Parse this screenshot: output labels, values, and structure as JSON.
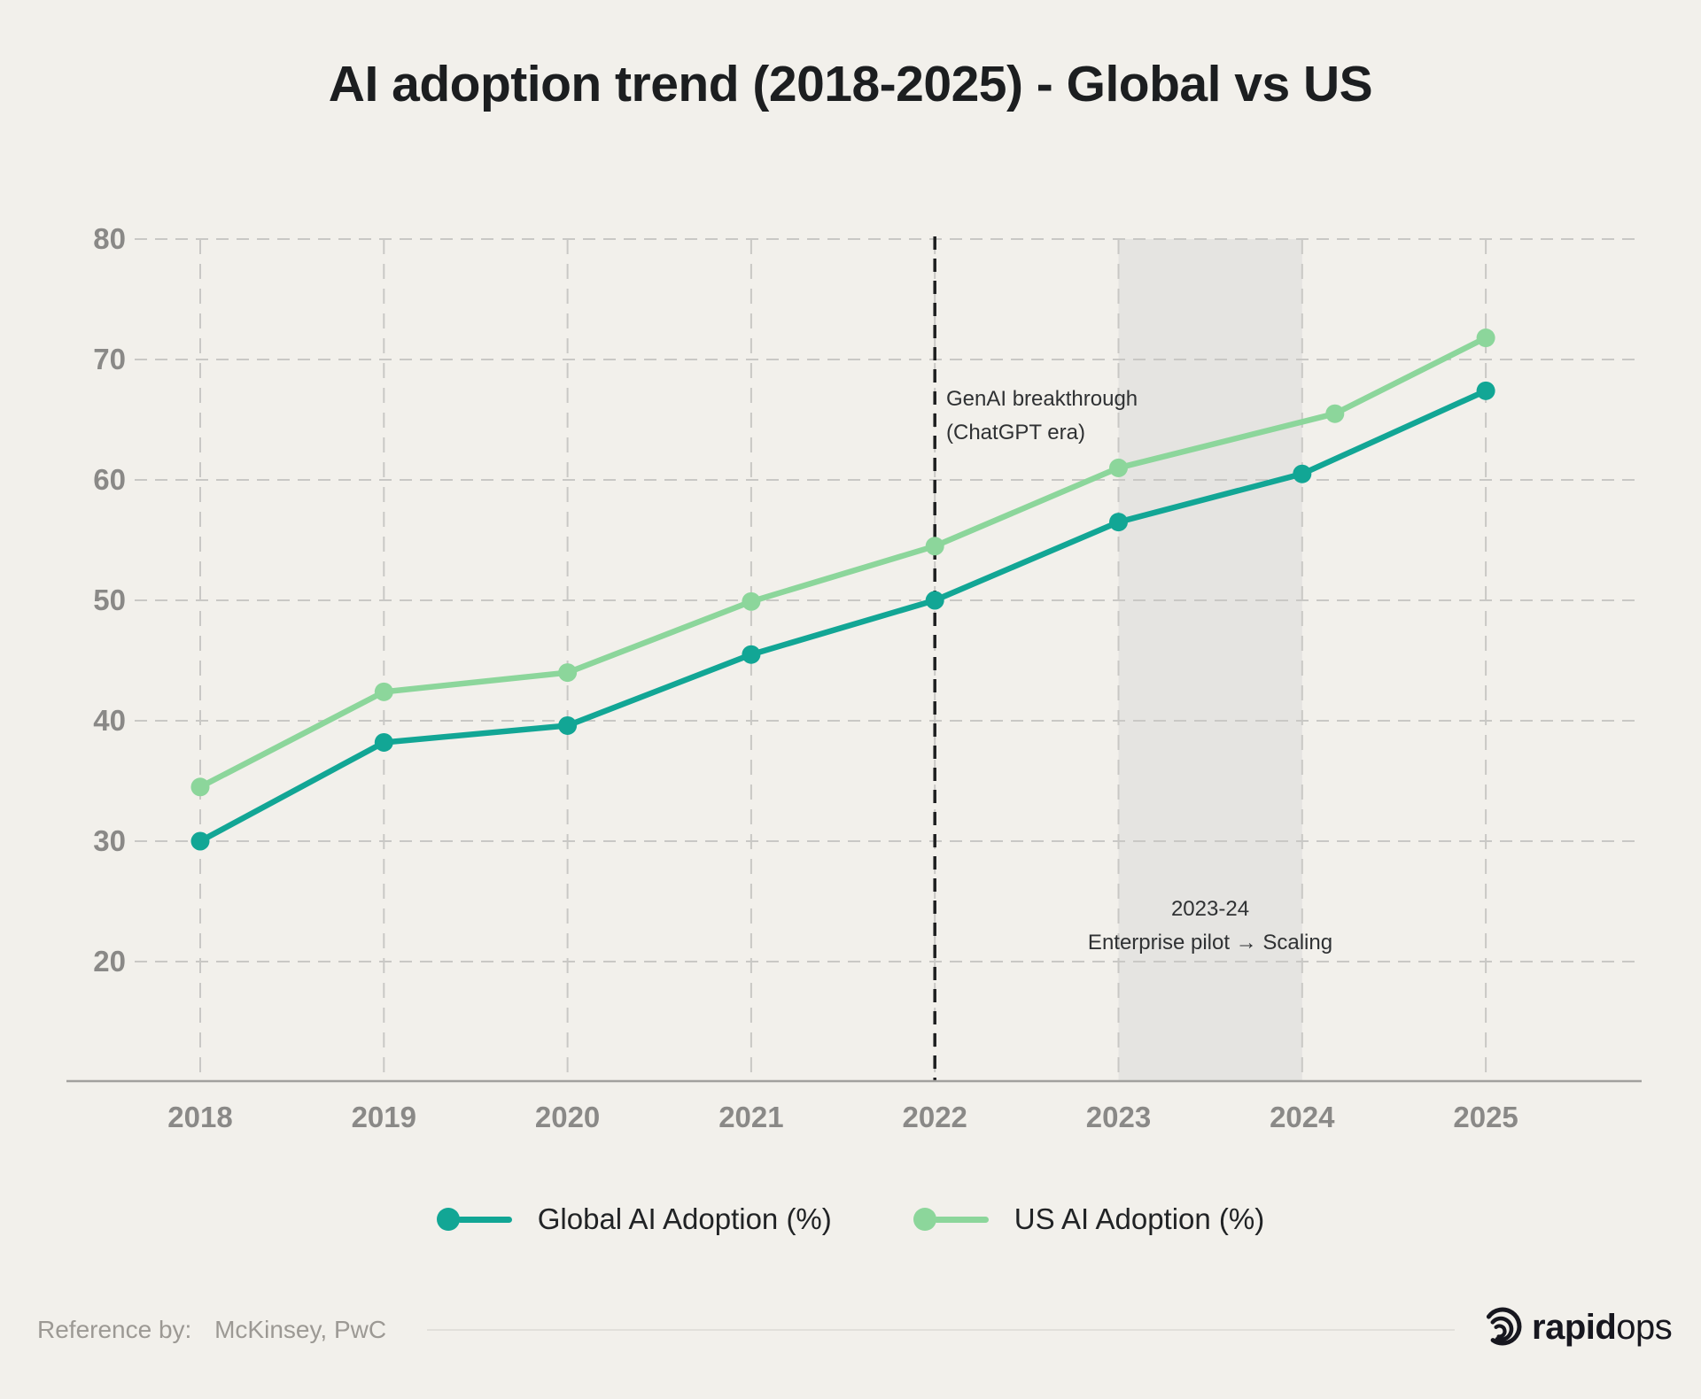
{
  "title": "AI adoption trend (2018-2025) - Global vs US",
  "colors": {
    "background": "#F2F0EB",
    "global_line": "#12A695",
    "us_line": "#8CD69B",
    "grid": "#C9C8C5",
    "axis_line": "#A2A19E",
    "tick_text": "#8A8987",
    "band_fill": "#E5E4E1",
    "event_line": "#1E1F20",
    "annotation_text": "#2F3133",
    "title_text": "#1C1E20",
    "footer_text": "#9C9994",
    "logo_color": "#17171F"
  },
  "chart_data": {
    "type": "line",
    "x": [
      2018,
      2019,
      2020,
      2021,
      2022,
      2023,
      2024,
      2025
    ],
    "series": [
      {
        "name": "Global AI Adoption (%)",
        "color": "#12A695",
        "values": [
          30,
          38.2,
          39.6,
          45.5,
          50,
          56.5,
          60.5,
          67.4
        ]
      },
      {
        "name": "US AI Adoption (%)",
        "color": "#8CD69B",
        "values": [
          34.5,
          42.4,
          44,
          49.9,
          54.5,
          61,
          65.5,
          71.8
        ]
      }
    ],
    "ylim": [
      10,
      80
    ],
    "yticks": [
      20,
      30,
      40,
      50,
      60,
      70,
      80
    ],
    "grid": true,
    "legend_position": "bottom",
    "annotations": {
      "event_line": {
        "x": 2022,
        "label_line1": "GenAI breakthrough",
        "label_line2": "(ChatGPT era)"
      },
      "band": {
        "x_start": 2023,
        "x_end": 2024,
        "label_line1": "2023-24",
        "label_line2": "Enterprise pilot → Scaling"
      }
    }
  },
  "footer": {
    "reference_label": "Reference by:",
    "reference_source": "McKinsey, PwC",
    "brand_bold": "rapid",
    "brand_regular": "ops"
  }
}
